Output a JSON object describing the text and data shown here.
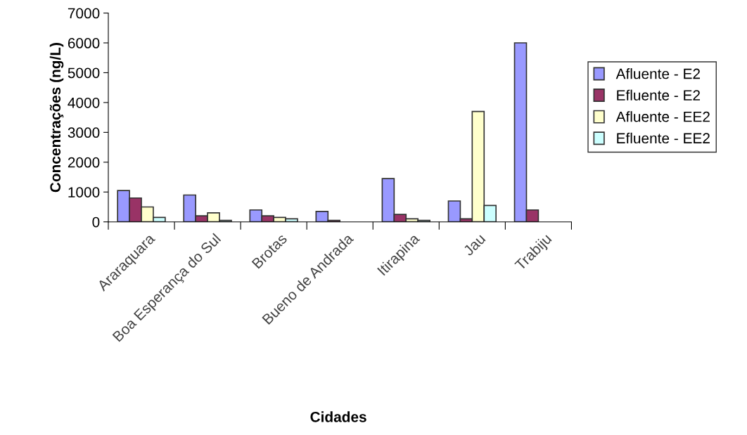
{
  "chart_data": {
    "type": "bar",
    "xlabel": "Cidades",
    "ylabel": "Concentrações (ng/L)",
    "categories": [
      "Araraquara",
      "Boa Esperança do Sul",
      "Brotas",
      "Bueno de Andrada",
      "Itirapina",
      "Jau",
      "Trabiju"
    ],
    "series": [
      {
        "name": "Afluente - E2",
        "color": "#9999ff",
        "values": [
          1050,
          900,
          400,
          350,
          1450,
          700,
          6000
        ]
      },
      {
        "name": "Efluente - E2",
        "color": "#993366",
        "values": [
          800,
          200,
          200,
          50,
          250,
          100,
          400
        ]
      },
      {
        "name": "Afluente - EE2",
        "color": "#ffffcc",
        "values": [
          500,
          300,
          150,
          null,
          100,
          3700,
          null
        ]
      },
      {
        "name": "Efluente - EE2",
        "color": "#ccffff",
        "values": [
          150,
          50,
          100,
          null,
          50,
          550,
          null
        ]
      }
    ],
    "ylim": [
      0,
      7000
    ],
    "yticks": [
      0,
      1000,
      2000,
      3000,
      4000,
      5000,
      6000,
      7000
    ],
    "grid": false,
    "legend": "right"
  }
}
